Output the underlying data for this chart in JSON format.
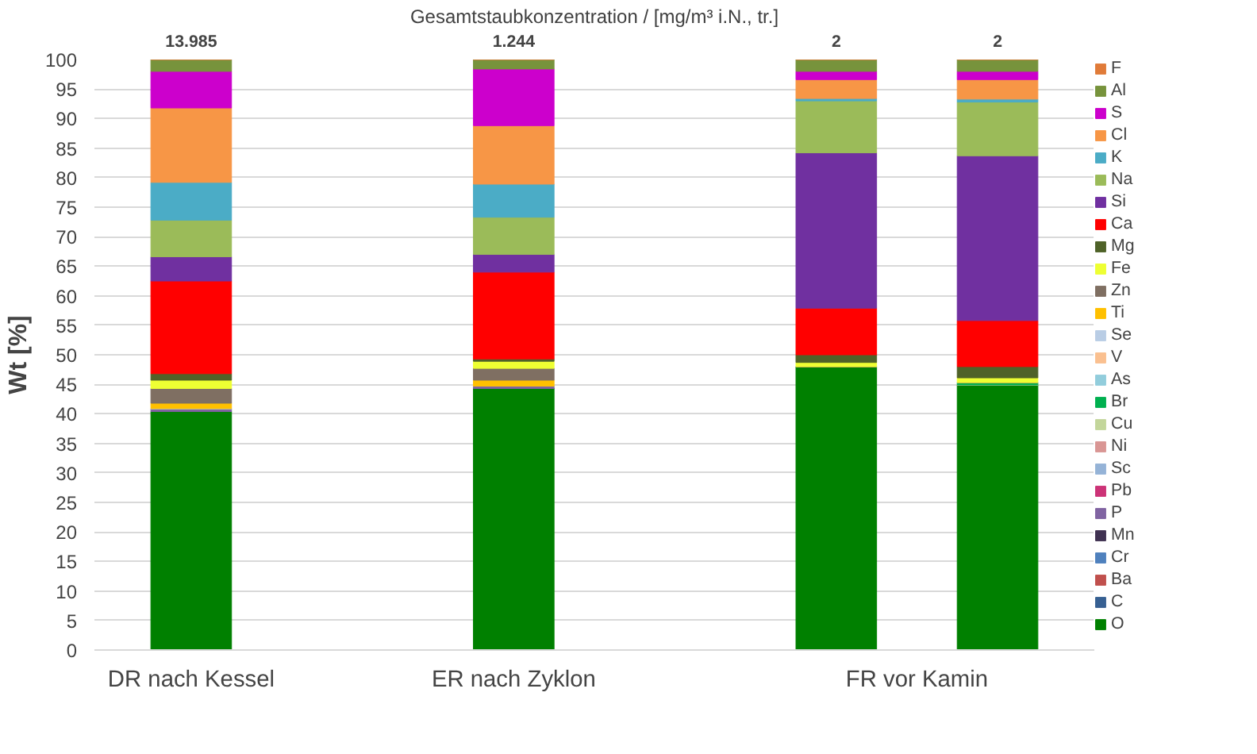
{
  "chart_data": {
    "type": "bar",
    "stacked": true,
    "title": "Gesamtstaubkonzentration / [mg/m³ i.N., tr.]",
    "ylabel": "Wt [%]",
    "categories": [
      "DR nach Kessel",
      null,
      "ER nach Zyklon",
      null,
      null,
      null
    ],
    "annotations": [
      "13.985",
      "1.244",
      "2",
      "2",
      "FR vor Kamin"
    ],
    "ylim": [
      0,
      100
    ],
    "yticks": [
      0,
      5,
      10,
      15,
      20,
      25,
      30,
      35,
      40,
      45,
      50,
      55,
      60,
      65,
      70,
      75,
      80,
      85,
      90,
      95,
      100
    ],
    "grid": "y",
    "legend": "right",
    "series": [
      {
        "name": "O",
        "color": "#008000",
        "values": [
          40.4,
          null,
          44.3,
          null,
          48.0,
          44.9
        ]
      },
      {
        "name": "C",
        "color": "#376092",
        "values": [
          0,
          null,
          0,
          null,
          0,
          0
        ]
      },
      {
        "name": "Ba",
        "color": "#c0504d",
        "values": [
          0,
          null,
          0,
          null,
          0,
          0
        ]
      },
      {
        "name": "Cr",
        "color": "#4f81bd",
        "values": [
          0,
          null,
          0,
          null,
          0,
          0
        ]
      },
      {
        "name": "Mn",
        "color": "#3f3151",
        "values": [
          0,
          null,
          0,
          null,
          0,
          0
        ]
      },
      {
        "name": "P",
        "color": "#8064a2",
        "values": [
          0.5,
          null,
          0.4,
          null,
          0,
          0
        ]
      },
      {
        "name": "Pb",
        "color": "#cc3377",
        "values": [
          0,
          null,
          0,
          null,
          0,
          0
        ]
      },
      {
        "name": "Sc",
        "color": "#95b3d7",
        "values": [
          0,
          null,
          0,
          null,
          0,
          0
        ]
      },
      {
        "name": "Ni",
        "color": "#d99694",
        "values": [
          0,
          null,
          0,
          null,
          0,
          0
        ]
      },
      {
        "name": "Cu",
        "color": "#c3d69b",
        "values": [
          0,
          null,
          0,
          null,
          0,
          0
        ]
      },
      {
        "name": "Br",
        "color": "#00b050",
        "values": [
          0,
          null,
          0,
          null,
          0,
          0.4
        ]
      },
      {
        "name": "As",
        "color": "#92cddc",
        "values": [
          0,
          null,
          0,
          null,
          0,
          0
        ]
      },
      {
        "name": "V",
        "color": "#fac090",
        "values": [
          0,
          null,
          0,
          null,
          0,
          0
        ]
      },
      {
        "name": "Se",
        "color": "#b9cde5",
        "values": [
          0,
          null,
          0,
          null,
          0,
          0
        ]
      },
      {
        "name": "Ti",
        "color": "#ffc000",
        "values": [
          0.9,
          null,
          1.0,
          null,
          0,
          0
        ]
      },
      {
        "name": "Zn",
        "color": "#7f6f62",
        "values": [
          2.5,
          null,
          2.0,
          null,
          0,
          0
        ]
      },
      {
        "name": "Fe",
        "color": "#eeff33",
        "values": [
          1.4,
          null,
          1.2,
          null,
          0.7,
          0.8
        ]
      },
      {
        "name": "Mg",
        "color": "#4f6228",
        "values": [
          1.1,
          null,
          0.4,
          null,
          1.3,
          1.9
        ]
      },
      {
        "name": "Ca",
        "color": "#ff0000",
        "values": [
          15.7,
          null,
          14.7,
          null,
          7.9,
          7.8
        ]
      },
      {
        "name": "Si",
        "color": "#7030a0",
        "values": [
          4.1,
          null,
          3.0,
          null,
          26.3,
          27.9
        ]
      },
      {
        "name": "Na",
        "color": "#9bbb59",
        "values": [
          6.2,
          null,
          6.3,
          null,
          8.8,
          9.1
        ]
      },
      {
        "name": "K",
        "color": "#4bacc6",
        "values": [
          6.4,
          null,
          5.6,
          null,
          0.4,
          0.5
        ]
      },
      {
        "name": "Cl",
        "color": "#f79646",
        "values": [
          12.6,
          null,
          9.9,
          null,
          3.2,
          3.3
        ]
      },
      {
        "name": "S",
        "color": "#cc00cc",
        "values": [
          6.2,
          null,
          9.6,
          null,
          1.4,
          1.4
        ]
      },
      {
        "name": "Al",
        "color": "#77933c",
        "values": [
          2.0,
          null,
          1.6,
          null,
          2.0,
          2.0
        ]
      },
      {
        "name": "F",
        "color": "#e07b39",
        "values": [
          0,
          null,
          0,
          null,
          0,
          0
        ]
      }
    ]
  }
}
